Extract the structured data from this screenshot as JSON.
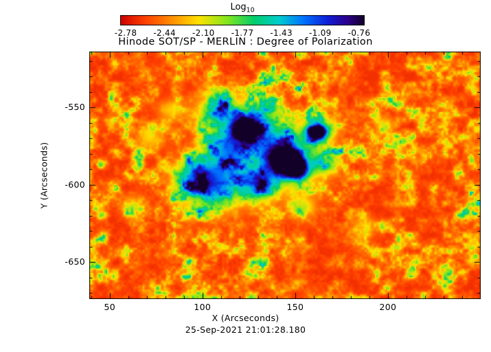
{
  "figure": {
    "background": "#ffffff",
    "text_color": "#000000"
  },
  "chart_data": {
    "type": "heatmap",
    "title": "Hinode SOT/SP - MERLIN : Degree of Polarization",
    "subtitle": "25-Sep-2021 21:01:28.180",
    "xlabel": "X (Arcseconds)",
    "ylabel": "Y (Arcseconds)",
    "value_label": "Log10 Degree of Polarization",
    "x_range": [
      39,
      250
    ],
    "y_range": [
      -674,
      -514
    ],
    "x_ticks": [
      50,
      100,
      150,
      200
    ],
    "y_ticks": [
      -650,
      -600,
      -550
    ],
    "minor_tick_step": 10,
    "colorbar": {
      "label_base": "Log",
      "label_sub": "10",
      "tick_labels": [
        "-2.78",
        "-2.44",
        "-2.10",
        "-1.77",
        "-1.43",
        "-1.09",
        "-0.76"
      ],
      "value_min": -2.78,
      "value_max": -0.76
    },
    "colormap": [
      [
        0.0,
        [
          205,
          0,
          0
        ]
      ],
      [
        0.1,
        [
          255,
          64,
          0
        ]
      ],
      [
        0.22,
        [
          255,
          150,
          0
        ]
      ],
      [
        0.32,
        [
          255,
          225,
          0
        ]
      ],
      [
        0.44,
        [
          130,
          230,
          30
        ]
      ],
      [
        0.55,
        [
          0,
          205,
          110
        ]
      ],
      [
        0.65,
        [
          0,
          205,
          205
        ]
      ],
      [
        0.75,
        [
          0,
          115,
          255
        ]
      ],
      [
        0.85,
        [
          15,
          30,
          215
        ]
      ],
      [
        0.93,
        [
          45,
          0,
          140
        ]
      ],
      [
        1.0,
        [
          18,
          0,
          40
        ]
      ]
    ],
    "noise": {
      "base": 0.07,
      "gain": 0.8,
      "power": 3.0
    },
    "features": [
      {
        "x": 145,
        "y": -585,
        "r": 5.5,
        "a": 1.15
      },
      {
        "x": 145,
        "y": -585,
        "r": 11,
        "a": 0.45
      },
      {
        "x": 152,
        "y": -592,
        "r": 4,
        "a": 0.6
      },
      {
        "x": 123,
        "y": -564,
        "r": 4.5,
        "a": 1.0
      },
      {
        "x": 123,
        "y": -564,
        "r": 9,
        "a": 0.4
      },
      {
        "x": 162,
        "y": -566,
        "r": 3.5,
        "a": 0.9
      },
      {
        "x": 162,
        "y": -566,
        "r": 7,
        "a": 0.35
      },
      {
        "x": 104,
        "y": -601,
        "r": 11,
        "a": 0.5
      },
      {
        "x": 96,
        "y": -594,
        "r": 7,
        "a": 0.35
      },
      {
        "x": 109,
        "y": -552,
        "r": 8,
        "a": 0.45
      },
      {
        "x": 113,
        "y": -576,
        "r": 8,
        "a": 0.4
      },
      {
        "x": 131,
        "y": -601,
        "r": 7,
        "a": 0.45
      },
      {
        "x": 140,
        "y": -572,
        "r": 9,
        "a": 0.35
      },
      {
        "x": 165,
        "y": -587,
        "r": 6,
        "a": 0.3
      },
      {
        "x": 154,
        "y": -614,
        "r": 5,
        "a": 0.28
      },
      {
        "x": 118,
        "y": -590,
        "r": 12,
        "a": 0.3
      },
      {
        "x": 133,
        "y": -552,
        "r": 7,
        "a": 0.3
      },
      {
        "x": 72,
        "y": -570,
        "r": 5,
        "a": 0.22
      },
      {
        "x": 83,
        "y": -552,
        "r": 5,
        "a": 0.2
      },
      {
        "x": 63,
        "y": -614,
        "r": 5,
        "a": 0.18
      },
      {
        "x": 187,
        "y": -628,
        "r": 5,
        "a": 0.16
      },
      {
        "x": 198,
        "y": -561,
        "r": 4,
        "a": 0.16
      }
    ]
  }
}
